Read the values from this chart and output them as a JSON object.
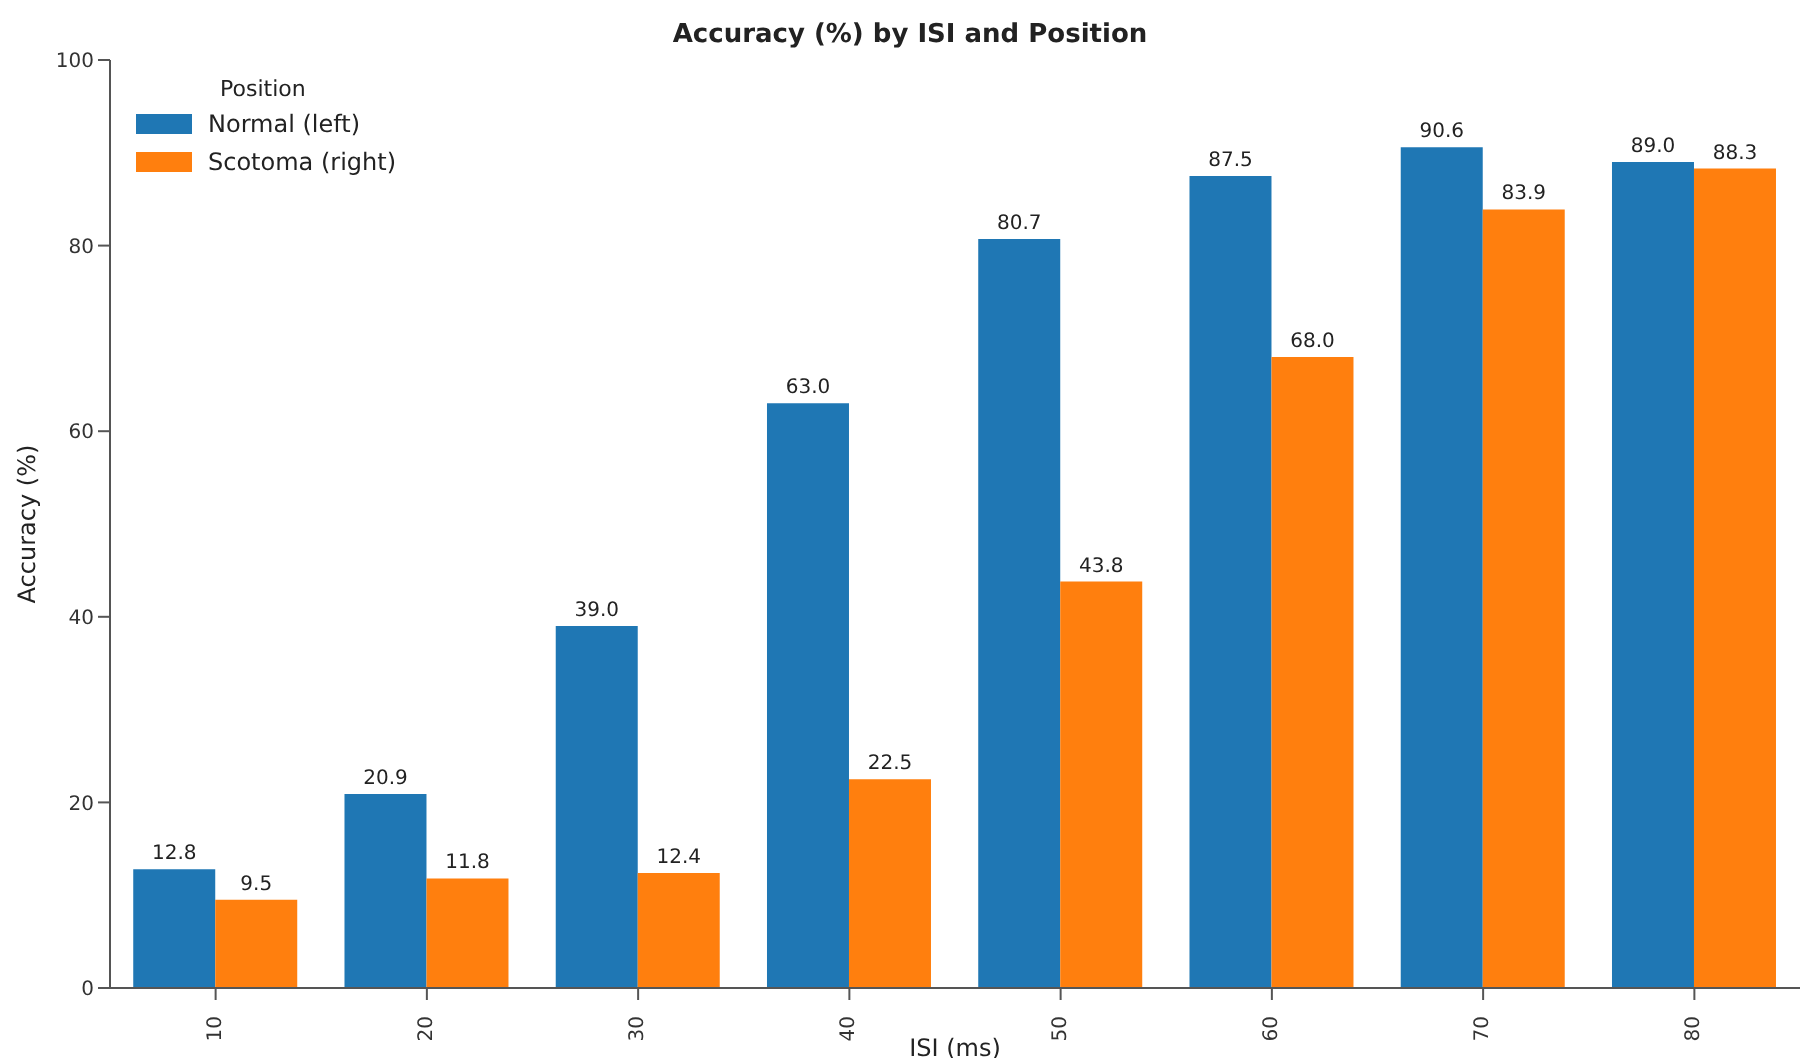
{
  "chart_data": {
    "type": "bar",
    "title": "Accuracy (%) by ISI and Position",
    "xlabel": "ISI (ms)",
    "ylabel": "Accuracy (%)",
    "legend_title": "Position",
    "categories": [
      "10",
      "20",
      "30",
      "40",
      "50",
      "60",
      "70",
      "80"
    ],
    "series": [
      {
        "name": "Normal (left)",
        "color": "#1f77b4",
        "values": [
          12.8,
          20.9,
          39,
          63,
          80.7,
          87.5,
          90.6,
          89
        ],
        "value_labels": [
          "12.8",
          "20.9",
          "39.0",
          "63.0",
          "80.7",
          "87.5",
          "90.6",
          "89.0"
        ]
      },
      {
        "name": "Scotoma (right)",
        "color": "#ff7f0e",
        "values": [
          9.5,
          11.8,
          12.4,
          22.5,
          43.8,
          68,
          83.9,
          88.3
        ],
        "value_labels": [
          "9.5",
          "11.8",
          "12.4",
          "22.5",
          "43.8",
          "68.0",
          "83.9",
          "88.3"
        ]
      }
    ],
    "ylim": [
      0,
      100
    ],
    "yticks": [
      0,
      20,
      40,
      60,
      80,
      100
    ],
    "legend": "top left"
  }
}
